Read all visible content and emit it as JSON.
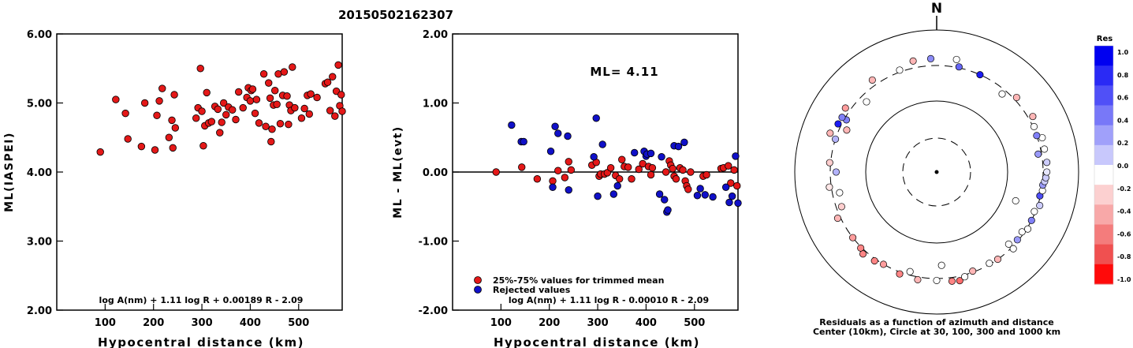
{
  "title": "20150502162307",
  "chart_data": [
    {
      "type": "scatter",
      "xlabel": "Hypocentral distance (km)",
      "ylabel": "ML(IASPEI)",
      "xlim": [
        0,
        590
      ],
      "ylim": [
        2.0,
        6.0
      ],
      "xticks": [
        "100",
        "200",
        "300",
        "400",
        "500"
      ],
      "yticks": [
        "2.00",
        "3.00",
        "4.00",
        "5.00",
        "6.00"
      ],
      "formula": "log A(nm) + 1.11 log R + 0.00189 R - 2.09",
      "points": [
        [
          90,
          4.29
        ],
        [
          122,
          5.05
        ],
        [
          142,
          4.85
        ],
        [
          147,
          4.48
        ],
        [
          175,
          4.37
        ],
        [
          182,
          5.0
        ],
        [
          203,
          4.32
        ],
        [
          207,
          4.82
        ],
        [
          212,
          5.03
        ],
        [
          218,
          5.21
        ],
        [
          232,
          4.5
        ],
        [
          238,
          4.75
        ],
        [
          240,
          4.35
        ],
        [
          243,
          5.12
        ],
        [
          245,
          4.64
        ],
        [
          288,
          4.78
        ],
        [
          292,
          4.93
        ],
        [
          297,
          5.5
        ],
        [
          300,
          4.88
        ],
        [
          303,
          4.38
        ],
        [
          306,
          4.67
        ],
        [
          310,
          5.15
        ],
        [
          314,
          4.71
        ],
        [
          320,
          4.73
        ],
        [
          327,
          4.95
        ],
        [
          333,
          4.91
        ],
        [
          337,
          4.57
        ],
        [
          341,
          4.72
        ],
        [
          345,
          5.0
        ],
        [
          350,
          4.83
        ],
        [
          355,
          4.94
        ],
        [
          363,
          4.9
        ],
        [
          370,
          4.76
        ],
        [
          376,
          5.16
        ],
        [
          385,
          4.93
        ],
        [
          393,
          5.08
        ],
        [
          396,
          5.22
        ],
        [
          400,
          5.03
        ],
        [
          402,
          5.18
        ],
        [
          405,
          5.2
        ],
        [
          410,
          4.85
        ],
        [
          413,
          5.05
        ],
        [
          418,
          4.71
        ],
        [
          428,
          5.42
        ],
        [
          432,
          4.66
        ],
        [
          438,
          5.29
        ],
        [
          441,
          5.07
        ],
        [
          443,
          4.44
        ],
        [
          445,
          4.62
        ],
        [
          448,
          4.97
        ],
        [
          451,
          5.18
        ],
        [
          455,
          4.98
        ],
        [
          458,
          5.42
        ],
        [
          462,
          4.7
        ],
        [
          467,
          5.11
        ],
        [
          470,
          5.45
        ],
        [
          476,
          5.1
        ],
        [
          479,
          4.69
        ],
        [
          481,
          4.97
        ],
        [
          484,
          4.89
        ],
        [
          487,
          5.52
        ],
        [
          492,
          4.93
        ],
        [
          506,
          4.78
        ],
        [
          512,
          4.92
        ],
        [
          518,
          5.11
        ],
        [
          522,
          4.84
        ],
        [
          525,
          5.13
        ],
        [
          538,
          5.08
        ],
        [
          555,
          5.28
        ],
        [
          560,
          5.3
        ],
        [
          565,
          4.89
        ],
        [
          570,
          5.38
        ],
        [
          575,
          4.81
        ],
        [
          578,
          5.17
        ],
        [
          582,
          5.55
        ],
        [
          585,
          4.96
        ],
        [
          588,
          5.12
        ],
        [
          590,
          4.88
        ]
      ]
    },
    {
      "type": "scatter",
      "xlabel": "Hypocentral distance (km)",
      "ylabel": "ML - ML(evt)",
      "xlim": [
        0,
        590
      ],
      "ylim": [
        -2.0,
        2.0
      ],
      "xticks": [
        "100",
        "200",
        "300",
        "400",
        "500"
      ],
      "yticks": [
        "-2.00",
        "-1.00",
        "0.00",
        "1.00",
        "2.00"
      ],
      "annotation": "ML= 4.11",
      "formula": "log A(nm) + 1.11 log R - 0.00010 R - 2.09",
      "series": [
        {
          "name": "25%-75% values for trimmed mean",
          "color": "#e41818",
          "points": [
            [
              90,
              0.0
            ],
            [
              143,
              0.07
            ],
            [
              175,
              -0.1
            ],
            [
              207,
              -0.13
            ],
            [
              218,
              0.02
            ],
            [
              232,
              -0.08
            ],
            [
              240,
              0.15
            ],
            [
              245,
              0.03
            ],
            [
              288,
              0.1
            ],
            [
              297,
              0.14
            ],
            [
              303,
              -0.06
            ],
            [
              306,
              -0.03
            ],
            [
              314,
              -0.03
            ],
            [
              320,
              -0.01
            ],
            [
              327,
              0.06
            ],
            [
              337,
              -0.05
            ],
            [
              345,
              -0.1
            ],
            [
              350,
              0.18
            ],
            [
              355,
              0.08
            ],
            [
              363,
              0.07
            ],
            [
              370,
              -0.1
            ],
            [
              385,
              0.04
            ],
            [
              393,
              0.12
            ],
            [
              405,
              0.08
            ],
            [
              410,
              -0.04
            ],
            [
              413,
              0.06
            ],
            [
              441,
              0.0
            ],
            [
              448,
              0.16
            ],
            [
              451,
              0.1
            ],
            [
              455,
              0.05
            ],
            [
              458,
              -0.06
            ],
            [
              462,
              -0.1
            ],
            [
              470,
              0.06
            ],
            [
              476,
              0.03
            ],
            [
              481,
              -0.13
            ],
            [
              484,
              -0.2
            ],
            [
              487,
              -0.25
            ],
            [
              492,
              0.0
            ],
            [
              518,
              -0.06
            ],
            [
              525,
              -0.04
            ],
            [
              555,
              0.05
            ],
            [
              560,
              0.06
            ],
            [
              570,
              0.09
            ],
            [
              575,
              -0.16
            ],
            [
              582,
              0.03
            ],
            [
              588,
              -0.2
            ]
          ]
        },
        {
          "name": "Rejected values",
          "color": "#1010c8",
          "points": [
            [
              122,
              0.68
            ],
            [
              142,
              0.44
            ],
            [
              147,
              0.44
            ],
            [
              203,
              0.3
            ],
            [
              207,
              -0.22
            ],
            [
              212,
              0.66
            ],
            [
              218,
              0.56
            ],
            [
              238,
              0.52
            ],
            [
              240,
              -0.26
            ],
            [
              292,
              0.22
            ],
            [
              297,
              0.78
            ],
            [
              300,
              -0.35
            ],
            [
              310,
              0.4
            ],
            [
              333,
              -0.32
            ],
            [
              341,
              -0.2
            ],
            [
              376,
              0.28
            ],
            [
              396,
              0.3
            ],
            [
              400,
              0.23
            ],
            [
              402,
              0.26
            ],
            [
              410,
              0.27
            ],
            [
              428,
              -0.32
            ],
            [
              432,
              0.22
            ],
            [
              438,
              -0.4
            ],
            [
              443,
              -0.58
            ],
            [
              445,
              -0.55
            ],
            [
              458,
              0.38
            ],
            [
              467,
              0.37
            ],
            [
              479,
              0.43
            ],
            [
              506,
              -0.34
            ],
            [
              512,
              -0.24
            ],
            [
              522,
              -0.33
            ],
            [
              538,
              -0.36
            ],
            [
              565,
              -0.22
            ],
            [
              572,
              -0.44
            ],
            [
              578,
              -0.35
            ],
            [
              585,
              0.23
            ],
            [
              590,
              -0.45
            ]
          ]
        }
      ]
    },
    {
      "type": "polar",
      "north_label": "N",
      "caption_lines": [
        "Residuals as a function of azimuth and distance",
        "Center (10km), Circle at 30, 100, 300 and 1000 km"
      ],
      "circles_km": [
        30,
        100,
        300,
        1000
      ],
      "colorbar": {
        "title": "Res",
        "labels": [
          "1.0",
          "0.8",
          "0.6",
          "0.4",
          "0.2",
          "0.0",
          "-0.2",
          "-0.4",
          "-0.6",
          "-0.8",
          "-1.0"
        ],
        "colors": [
          "#0000f0",
          "#2a2af5",
          "#5050f7",
          "#7878f8",
          "#a0a0fa",
          "#c8c8fc",
          "#ffffff",
          "#fcd0d0",
          "#f8a8a8",
          "#f47c7c",
          "#f05050",
          "#ff0a0a"
        ]
      },
      "stations": [
        {
          "az": 290,
          "dist": 380,
          "res": -0.3
        },
        {
          "az": 305,
          "dist": 355,
          "res": -0.4
        },
        {
          "az": 325,
          "dist": 365,
          "res": -0.3
        },
        {
          "az": 340,
          "dist": 320,
          "res": 0.0
        },
        {
          "az": 348,
          "dist": 380,
          "res": -0.3
        },
        {
          "az": 357,
          "dist": 380,
          "res": 0.45
        },
        {
          "az": 10,
          "dist": 390,
          "res": 0.0
        },
        {
          "az": 12,
          "dist": 310,
          "res": 0.6
        },
        {
          "az": 24,
          "dist": 300,
          "res": 0.9
        },
        {
          "az": 40,
          "dist": 260,
          "res": 0.0
        },
        {
          "az": 47,
          "dist": 330,
          "res": -0.3
        },
        {
          "az": 295,
          "dist": 240,
          "res": -0.3
        },
        {
          "az": 315,
          "dist": 240,
          "res": 0.0
        },
        {
          "az": 300,
          "dist": 280,
          "res": 0.5
        },
        {
          "az": 300,
          "dist": 330,
          "res": 0.5
        },
        {
          "az": 296,
          "dist": 335,
          "res": 0.9
        },
        {
          "az": 288,
          "dist": 300,
          "res": 0.3
        },
        {
          "az": 275,
          "dist": 310,
          "res": -0.2
        },
        {
          "az": 270,
          "dist": 250,
          "res": 0.3
        },
        {
          "az": 262,
          "dist": 320,
          "res": -0.1
        },
        {
          "az": 258,
          "dist": 240,
          "res": 0.0
        },
        {
          "az": 250,
          "dist": 255,
          "res": -0.2
        },
        {
          "az": 245,
          "dist": 330,
          "res": -0.3
        },
        {
          "az": 232,
          "dist": 300,
          "res": -0.4
        },
        {
          "az": 225,
          "dist": 310,
          "res": -0.5
        },
        {
          "az": 222,
          "dist": 340,
          "res": -0.5
        },
        {
          "az": 215,
          "dist": 320,
          "res": -0.5
        },
        {
          "az": 210,
          "dist": 300,
          "res": -0.4
        },
        {
          "az": 200,
          "dist": 320,
          "res": -0.5
        },
        {
          "az": 195,
          "dist": 270,
          "res": 0.0
        },
        {
          "az": 190,
          "dist": 330,
          "res": -0.3
        },
        {
          "az": 180,
          "dist": 320,
          "res": 0.0
        },
        {
          "az": 177,
          "dist": 200,
          "res": 0.0
        },
        {
          "az": 172,
          "dist": 340,
          "res": -0.5
        },
        {
          "az": 168,
          "dist": 350,
          "res": -0.6
        },
        {
          "az": 165,
          "dist": 320,
          "res": 0.0
        },
        {
          "az": 160,
          "dist": 290,
          "res": -0.3
        },
        {
          "az": 150,
          "dist": 290,
          "res": 0.0
        },
        {
          "az": 145,
          "dist": 300,
          "res": -0.3
        },
        {
          "az": 135,
          "dist": 260,
          "res": 0.0
        },
        {
          "az": 135,
          "dist": 320,
          "res": 0.0
        },
        {
          "az": 130,
          "dist": 290,
          "res": 0.4
        },
        {
          "az": 125,
          "dist": 280,
          "res": 0.0
        },
        {
          "az": 122,
          "dist": 310,
          "res": 0.0
        },
        {
          "az": 117,
          "dist": 300,
          "res": 0.5
        },
        {
          "az": 112,
          "dist": 290,
          "res": 0.0
        },
        {
          "az": 108,
          "dist": 320,
          "res": 0.2
        },
        {
          "az": 103,
          "dist": 295,
          "res": 0.7
        },
        {
          "az": 100,
          "dist": 310,
          "res": 0.0
        },
        {
          "az": 97,
          "dist": 305,
          "res": 0.4
        },
        {
          "az": 95,
          "dist": 320,
          "res": 0.2
        },
        {
          "az": 93,
          "dist": 330,
          "res": 0.2
        },
        {
          "az": 90,
          "dist": 340,
          "res": 0.1
        },
        {
          "az": 85,
          "dist": 345,
          "res": 0.2
        },
        {
          "az": 78,
          "dist": 340,
          "res": 0.0
        },
        {
          "az": 72,
          "dist": 350,
          "res": 0.0
        },
        {
          "az": 70,
          "dist": 300,
          "res": 0.5
        },
        {
          "az": 65,
          "dist": 310,
          "res": 0.0
        },
        {
          "az": 60,
          "dist": 350,
          "res": -0.3
        },
        {
          "az": 80,
          "dist": 270,
          "res": 0.4
        },
        {
          "az": 110,
          "dist": 150,
          "res": 0.0
        }
      ]
    }
  ]
}
